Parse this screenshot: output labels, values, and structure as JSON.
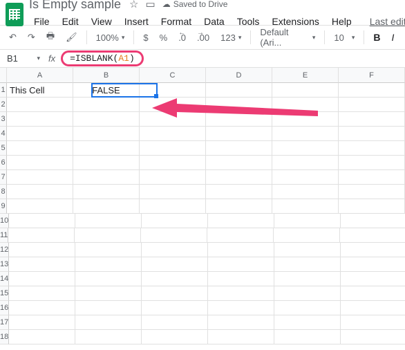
{
  "header": {
    "doc_title": "Is Empty sample",
    "saved_text": "Saved to Drive",
    "last_edit": "Last edit was s"
  },
  "menu": {
    "file": "File",
    "edit": "Edit",
    "view": "View",
    "insert": "Insert",
    "format": "Format",
    "data": "Data",
    "tools": "Tools",
    "extensions": "Extensions",
    "help": "Help"
  },
  "toolbar": {
    "zoom": "100%",
    "currency": "$",
    "percent": "%",
    "dec_dec": ".0",
    "dec_inc": ".00",
    "num_format": "123",
    "font": "Default (Ari...",
    "font_size": "10",
    "bold": "B",
    "italic": "I"
  },
  "fx": {
    "cell_ref": "B1",
    "prefix": "=ISBLANK(",
    "arg": "A1",
    "suffix": ")"
  },
  "columns": [
    "A",
    "B",
    "C",
    "D",
    "E",
    "F"
  ],
  "rows": [
    "1",
    "2",
    "3",
    "4",
    "5",
    "6",
    "7",
    "8",
    "9",
    "10",
    "11",
    "12",
    "13",
    "14",
    "15",
    "16",
    "17",
    "18"
  ],
  "cells": {
    "A1": "This Cell",
    "B1": "FALSE"
  },
  "annotation": {
    "highlight_color": "#ec3b73",
    "arrow_color": "#ec3b73",
    "selection_color": "#1a73e8"
  }
}
